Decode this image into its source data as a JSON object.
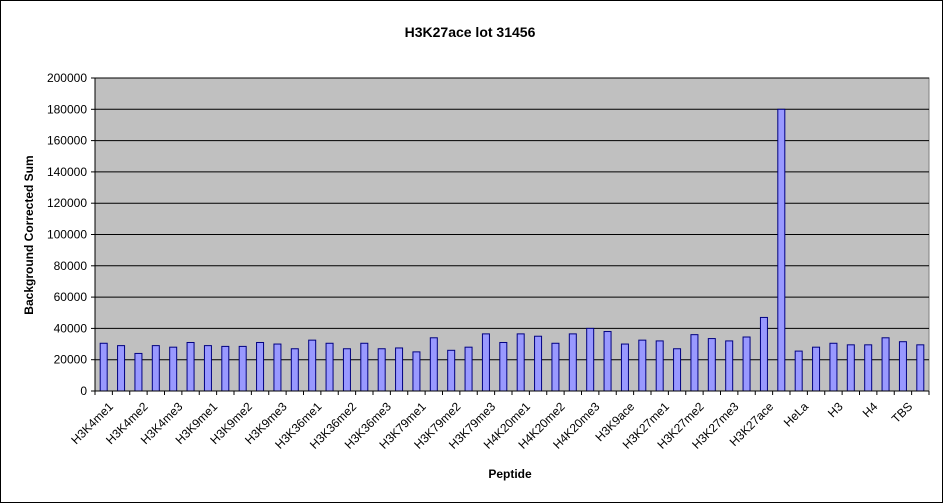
{
  "chart_data": {
    "type": "bar",
    "title": "H3K27ace lot 31456",
    "xlabel": "Peptide",
    "ylabel": "Background Corrected Sum",
    "ylim": [
      0,
      200000
    ],
    "y_ticks": [
      "0",
      "20000",
      "40000",
      "60000",
      "80000",
      "100000",
      "120000",
      "140000",
      "160000",
      "180000",
      "200000"
    ],
    "grid": true,
    "legend": "none",
    "categories": [
      "H3K4me1",
      "",
      "H3K4me2",
      "",
      "H3K4me3",
      "",
      "H3K9me1",
      "",
      "H3K9me2",
      "",
      "H3K9me3",
      "",
      "H3K36me1",
      "",
      "H3K36me2",
      "",
      "H3K36me3",
      "",
      "H3K79me1",
      "",
      "H3K79me2",
      "",
      "H3K79me3",
      "",
      "H4K20me1",
      "",
      "H4K20me2",
      "",
      "H4K20me3",
      "",
      "H3K9ace",
      "",
      "H3K27me1",
      "",
      "H3K27me2",
      "",
      "H3K27me3",
      "",
      "H3K27ace",
      "",
      "HeLa",
      "",
      "H3",
      "",
      "H4",
      "",
      "TBS",
      ""
    ],
    "values": [
      30500,
      29000,
      24000,
      29000,
      28000,
      31000,
      29000,
      28500,
      28500,
      31000,
      30000,
      27000,
      32500,
      30500,
      27000,
      30500,
      27000,
      27500,
      25000,
      34000,
      26000,
      28000,
      36500,
      31000,
      36500,
      35000,
      30500,
      36500,
      40000,
      38000,
      30000,
      32500,
      32000,
      27000,
      36000,
      33500,
      32000,
      34500,
      47000,
      180000,
      25500,
      28000,
      30500,
      29500,
      29500,
      34000,
      31500,
      29500
    ],
    "colors": {
      "bar_fill": "#9999ff",
      "bar_stroke": "#000080",
      "plot_bg": "#c0c0c0",
      "gridline": "#000000"
    }
  }
}
